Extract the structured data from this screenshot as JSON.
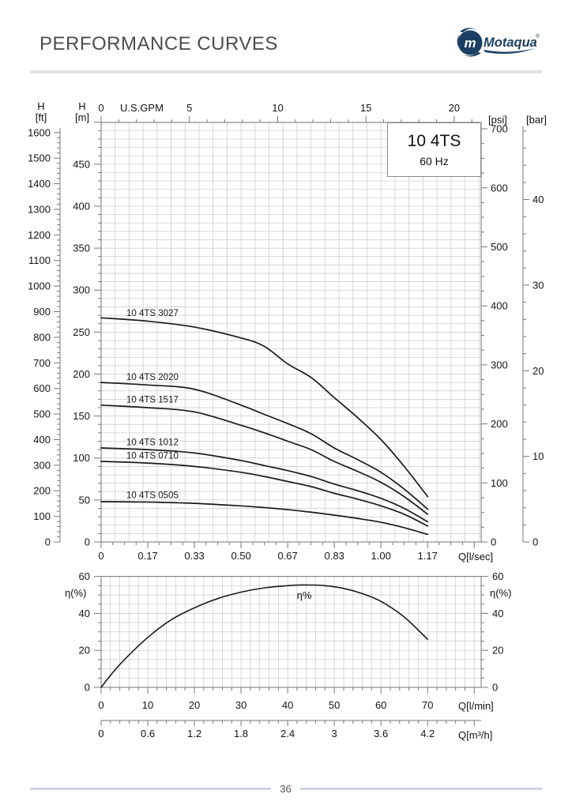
{
  "header": {
    "title": "PERFORMANCE CURVES",
    "brand": "Motaqua",
    "registered": "®",
    "logo_letter": "m"
  },
  "footer": {
    "page_number": "36"
  },
  "model_box": {
    "model": "10 4TS",
    "frequency": "60 Hz"
  },
  "colors": {
    "brand_navy": "#1c3f63",
    "divider": "#dfe3ea",
    "footer_line": "#ccd5e2",
    "grid": "#c9c9c9",
    "chart_border": "#8a8a8a",
    "tick": "#777777",
    "curve": "#1a1a1a",
    "label": "#151515",
    "title_text": "#4d4d4d"
  },
  "chart_data": [
    {
      "type": "line",
      "title": "10 4TS 60 Hz head vs flow curves",
      "axes": {
        "top": {
          "title": "U.S.GPM",
          "ticks": [
            0,
            5,
            10,
            15,
            20
          ]
        },
        "bottom": {
          "title": "Q[l/sec]",
          "tick_labels": [
            "0",
            "0.17",
            "0.33",
            "0.50",
            "0.67",
            "0.83",
            "1.00",
            "1.17"
          ]
        },
        "left_ft": {
          "title": "H",
          "unit": "[ft]",
          "ticks": [
            1600,
            1500,
            1400,
            1300,
            1200,
            1100,
            1000,
            900,
            800,
            700,
            600,
            500,
            400,
            300,
            200,
            100,
            0
          ]
        },
        "left_m": {
          "title": "H",
          "unit": "[m]",
          "ticks": [
            450,
            400,
            350,
            300,
            250,
            200,
            150,
            100,
            50,
            0
          ]
        },
        "right_psi": {
          "unit": "[psi]",
          "ticks": [
            700,
            600,
            500,
            400,
            300,
            200,
            100,
            0
          ]
        },
        "right_bar": {
          "unit": "[bar]",
          "ticks": [
            40,
            30,
            20,
            10,
            0
          ]
        }
      },
      "series": [
        {
          "name": "10 4TS 3027",
          "points_q_lsec_h_m": [
            [
              0,
              267
            ],
            [
              0.167,
              263
            ],
            [
              0.333,
              256
            ],
            [
              0.5,
              243
            ],
            [
              0.583,
              233
            ],
            [
              0.667,
              212
            ],
            [
              0.75,
              196
            ],
            [
              0.833,
              172
            ],
            [
              0.917,
              148
            ],
            [
              1.0,
              122
            ],
            [
              1.083,
              90
            ],
            [
              1.167,
              54
            ]
          ]
        },
        {
          "name": "10 4TS 2020",
          "points_q_lsec_h_m": [
            [
              0,
              190
            ],
            [
              0.167,
              187
            ],
            [
              0.333,
              182
            ],
            [
              0.5,
              163
            ],
            [
              0.583,
              152
            ],
            [
              0.667,
              141
            ],
            [
              0.75,
              129
            ],
            [
              0.833,
              112
            ],
            [
              0.917,
              98
            ],
            [
              1.0,
              83
            ],
            [
              1.083,
              63
            ],
            [
              1.167,
              39
            ]
          ]
        },
        {
          "name": "10 4TS 1517",
          "points_q_lsec_h_m": [
            [
              0,
              163
            ],
            [
              0.167,
              160
            ],
            [
              0.333,
              155
            ],
            [
              0.5,
              139
            ],
            [
              0.583,
              130
            ],
            [
              0.667,
              120
            ],
            [
              0.75,
              110
            ],
            [
              0.833,
              96
            ],
            [
              0.917,
              84
            ],
            [
              1.0,
              71
            ],
            [
              1.083,
              54
            ],
            [
              1.167,
              33
            ]
          ]
        },
        {
          "name": "10 4TS 1012",
          "points_q_lsec_h_m": [
            [
              0,
              112
            ],
            [
              0.167,
              110
            ],
            [
              0.333,
              106
            ],
            [
              0.5,
              97
            ],
            [
              0.583,
              91
            ],
            [
              0.667,
              85
            ],
            [
              0.75,
              78
            ],
            [
              0.833,
              69
            ],
            [
              0.917,
              61
            ],
            [
              1.0,
              52
            ],
            [
              1.083,
              40
            ],
            [
              1.167,
              24
            ]
          ]
        },
        {
          "name": "10 4TS 0710",
          "points_q_lsec_h_m": [
            [
              0,
              96
            ],
            [
              0.167,
              94
            ],
            [
              0.333,
              90
            ],
            [
              0.5,
              83
            ],
            [
              0.583,
              78
            ],
            [
              0.667,
              72
            ],
            [
              0.75,
              66
            ],
            [
              0.833,
              58
            ],
            [
              0.917,
              51
            ],
            [
              1.0,
              43
            ],
            [
              1.083,
              33
            ],
            [
              1.167,
              19
            ]
          ]
        },
        {
          "name": "10 4TS 0505",
          "points_q_lsec_h_m": [
            [
              0,
              48
            ],
            [
              0.167,
              47.5
            ],
            [
              0.333,
              46
            ],
            [
              0.5,
              43
            ],
            [
              0.583,
              41
            ],
            [
              0.667,
              38.5
            ],
            [
              0.75,
              35.5
            ],
            [
              0.833,
              32
            ],
            [
              0.917,
              28
            ],
            [
              1.0,
              23.5
            ],
            [
              1.083,
              17
            ],
            [
              1.167,
              9
            ]
          ]
        }
      ]
    },
    {
      "type": "line",
      "title": "Efficiency curve",
      "annotation": "η%",
      "axes": {
        "left": {
          "title": "η(%)",
          "ticks": [
            60,
            40,
            20,
            0
          ]
        },
        "right": {
          "title": "η(%)",
          "ticks": [
            60,
            40,
            20,
            0
          ]
        },
        "bottom_lmin": {
          "title": "Q[l/min]",
          "ticks": [
            0,
            10,
            20,
            30,
            40,
            50,
            60,
            70
          ]
        },
        "bottom_m3h": {
          "title": "Q[m³/h]",
          "tick_labels": [
            "0",
            "0.6",
            "1.2",
            "1.8",
            "2.4",
            "3",
            "3.6",
            "4.2"
          ]
        }
      },
      "series": [
        {
          "name": "η%",
          "points_q_lmin_eta_pct": [
            [
              0,
              0
            ],
            [
              2.5,
              8
            ],
            [
              5,
              15
            ],
            [
              10,
              27
            ],
            [
              15,
              36.5
            ],
            [
              20,
              43
            ],
            [
              25,
              48
            ],
            [
              30,
              51.5
            ],
            [
              35,
              53.8
            ],
            [
              40,
              55
            ],
            [
              44,
              55.4
            ],
            [
              48,
              55
            ],
            [
              52,
              53.5
            ],
            [
              56,
              50.7
            ],
            [
              60,
              46.5
            ],
            [
              65,
              38
            ],
            [
              70,
              26
            ]
          ]
        }
      ]
    }
  ]
}
